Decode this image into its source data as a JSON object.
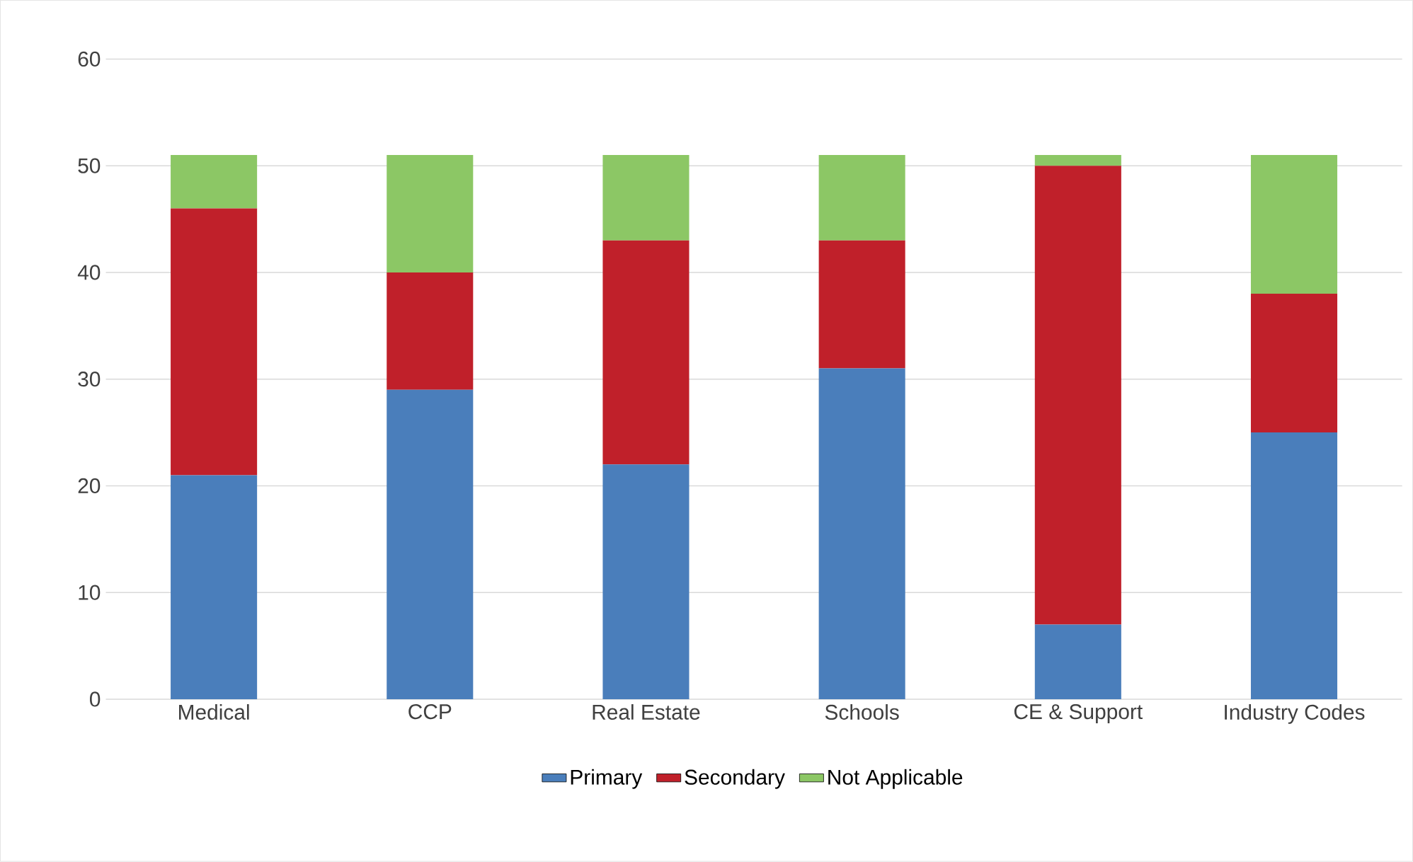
{
  "chart_data": {
    "type": "bar",
    "stacked": true,
    "categories": [
      "Medical",
      "CCP",
      "Real Estate",
      "Schools",
      "CE & Support",
      "Industry Codes"
    ],
    "series": [
      {
        "name": "Primary",
        "color": "#4a7ebb",
        "values": [
          21,
          29,
          22,
          31,
          7,
          25
        ]
      },
      {
        "name": "Secondary",
        "color": "#c0202a",
        "values": [
          25,
          11,
          21,
          12,
          43,
          13
        ]
      },
      {
        "name": "Not Applicable",
        "color": "#8cc765",
        "values": [
          5,
          11,
          8,
          8,
          1,
          13
        ]
      }
    ],
    "ylim": [
      0,
      60
    ],
    "yticks": [
      0,
      10,
      20,
      30,
      40,
      50,
      60
    ],
    "grid": "y",
    "legend": "bottom"
  }
}
